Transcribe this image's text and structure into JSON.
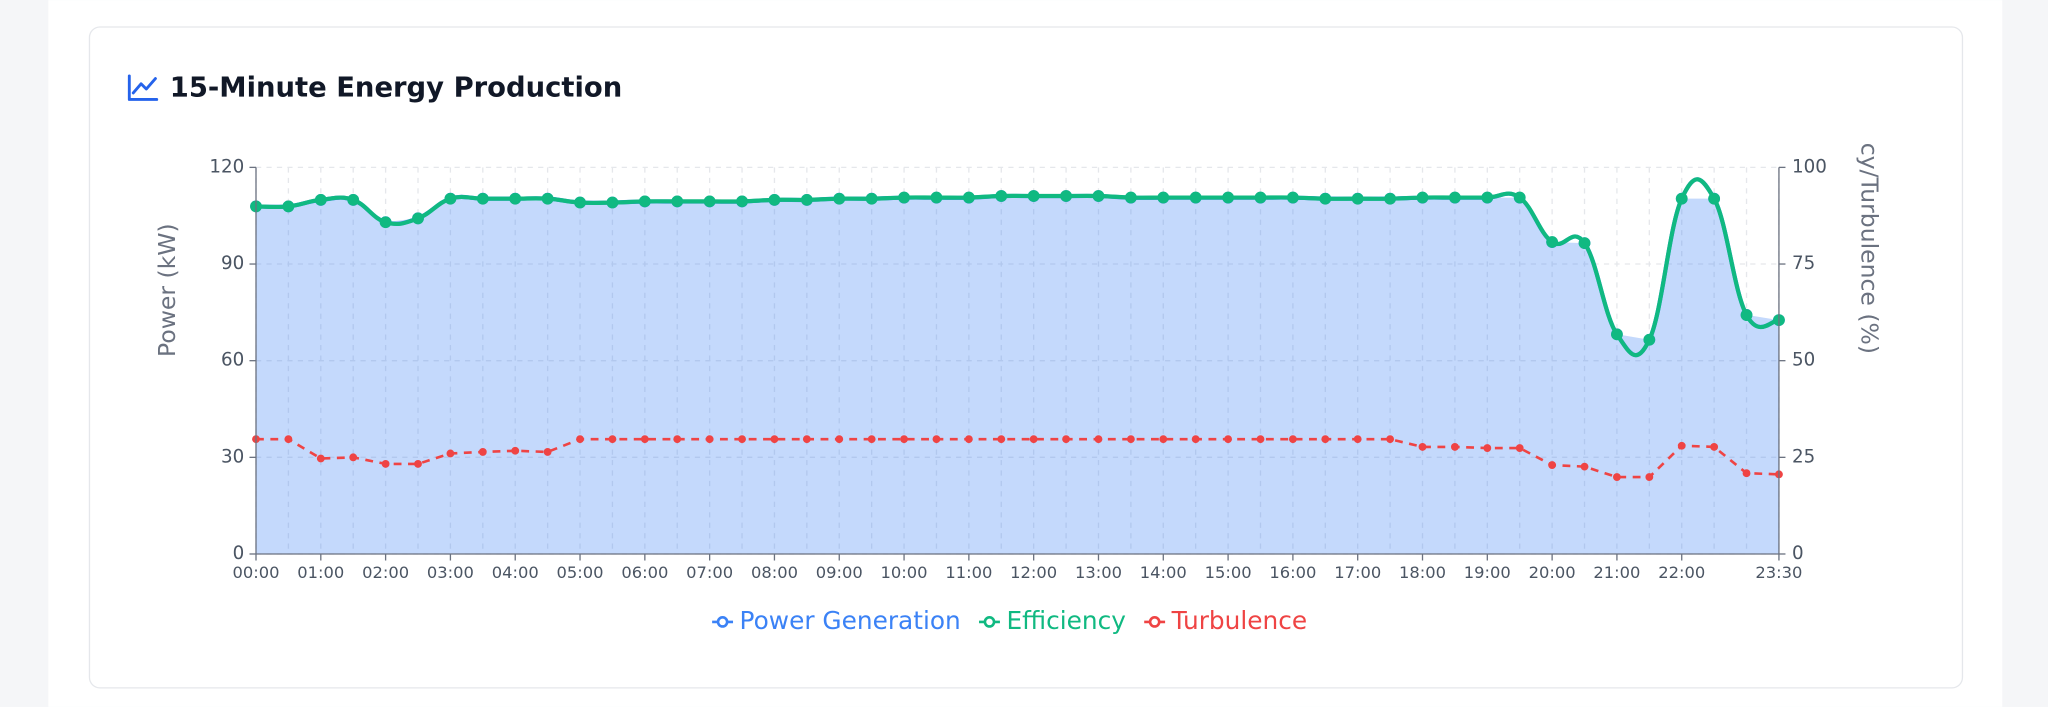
{
  "chart_data": {
    "type": "line",
    "title": "15-Minute Energy Production",
    "y_label": "Power (kW)",
    "y2_label": "cy/Turbulence (%)",
    "categories": [
      "00:00",
      null,
      "01:00",
      null,
      "02:00",
      null,
      "03:00",
      null,
      "04:00",
      null,
      "05:00",
      null,
      "06:00",
      null,
      "07:00",
      null,
      "08:00",
      null,
      "09:00",
      null,
      "10:00",
      null,
      "11:00",
      null,
      "12:00",
      null,
      "13:00",
      null,
      "14:00",
      null,
      "15:00",
      null,
      "16:00",
      null,
      "17:00",
      null,
      "18:00",
      null,
      "19:00",
      null,
      "20:00",
      null,
      "21:00",
      null,
      "22:00",
      null,
      null,
      "23:30"
    ],
    "series": [
      {
        "name": "Power Generation",
        "color": "#3b82f6",
        "area": true,
        "values": [
          107.9,
          107.9,
          109.9,
          109.9,
          103.0,
          104.2,
          110.3,
          110.3,
          110.3,
          110.3,
          109.1,
          109.1,
          109.4,
          109.4,
          109.4,
          109.4,
          109.9,
          109.9,
          110.3,
          110.3,
          110.6,
          110.6,
          110.6,
          111.1,
          111.1,
          111.1,
          111.1,
          110.6,
          110.6,
          110.6,
          110.6,
          110.6,
          110.6,
          110.3,
          110.3,
          110.3,
          110.6,
          110.6,
          110.6,
          110.6,
          96.8,
          96.5,
          68.2,
          66.5,
          110.3,
          110.3,
          74.2,
          72.6
        ]
      },
      {
        "name": "Efficiency",
        "color": "#10b981",
        "axis": "y2",
        "values": [
          89.9,
          89.9,
          91.6,
          91.6,
          85.8,
          86.8,
          91.9,
          91.9,
          91.9,
          91.9,
          90.9,
          90.9,
          91.2,
          91.2,
          91.2,
          91.2,
          91.6,
          91.6,
          91.9,
          91.9,
          92.2,
          92.2,
          92.2,
          92.6,
          92.6,
          92.6,
          92.6,
          92.2,
          92.2,
          92.2,
          92.2,
          92.2,
          92.2,
          91.9,
          91.9,
          91.9,
          92.2,
          92.2,
          92.2,
          92.2,
          80.7,
          80.4,
          56.8,
          55.4,
          91.9,
          91.9,
          61.8,
          60.5
        ]
      },
      {
        "name": "Turbulence",
        "color": "#ef4444",
        "axis": "y2",
        "dashed": true,
        "values": [
          29.7,
          29.7,
          24.7,
          25.0,
          23.3,
          23.3,
          26.0,
          26.4,
          26.7,
          26.4,
          29.7,
          29.7,
          29.7,
          29.7,
          29.7,
          29.7,
          29.7,
          29.7,
          29.7,
          29.7,
          29.7,
          29.7,
          29.7,
          29.7,
          29.7,
          29.7,
          29.7,
          29.7,
          29.7,
          29.7,
          29.7,
          29.7,
          29.7,
          29.7,
          29.7,
          29.7,
          27.7,
          27.7,
          27.4,
          27.4,
          23.0,
          22.6,
          19.9,
          19.9,
          28.0,
          27.7,
          20.9,
          20.6
        ]
      }
    ],
    "ylim": [
      0,
      120
    ],
    "yticks": [
      0,
      30,
      60,
      90,
      120
    ],
    "y2lim": [
      0,
      100
    ],
    "y2ticks": [
      0,
      25,
      50,
      75,
      100
    ],
    "grid": true
  }
}
